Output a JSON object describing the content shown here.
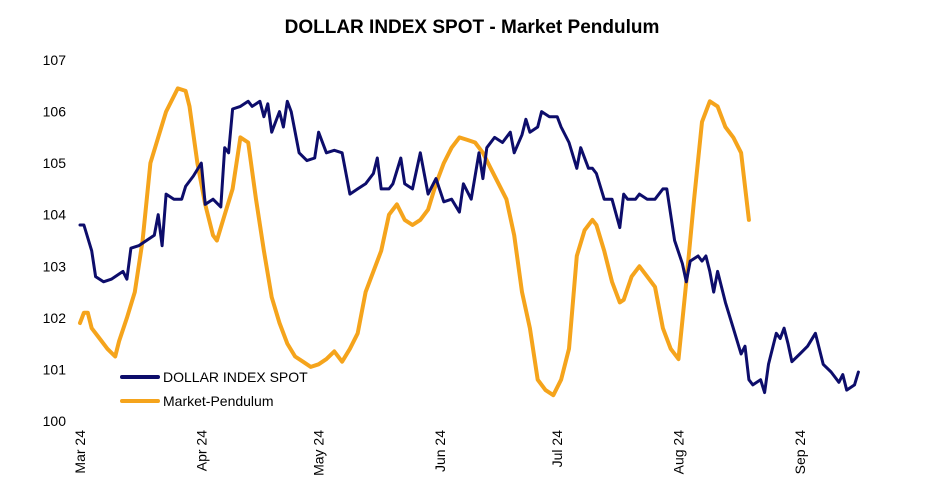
{
  "chart_data": {
    "type": "line",
    "title": "DOLLAR INDEX SPOT - Market Pendulum",
    "xlabel": "",
    "ylabel": "",
    "ylim": [
      100,
      107
    ],
    "y_ticks": [
      100,
      101,
      102,
      103,
      104,
      105,
      106,
      107
    ],
    "x_ticks": [
      "Mar 24",
      "Apr 24",
      "May 24",
      "Jun 24",
      "Jul 24",
      "Aug 24",
      "Sep 24"
    ],
    "x_tick_dates": [
      "2024-03-01",
      "2024-04-01",
      "2024-05-01",
      "2024-06-01",
      "2024-07-01",
      "2024-08-01",
      "2024-09-01"
    ],
    "xlim": [
      "2024-03-01",
      "2024-09-21"
    ],
    "grid": false,
    "legend": "bottom-left",
    "series": [
      {
        "name": "DOLLAR INDEX SPOT",
        "color": "#0d0d6b",
        "points": [
          [
            "2024-03-01",
            103.8
          ],
          [
            "2024-03-02",
            103.8
          ],
          [
            "2024-03-04",
            103.3
          ],
          [
            "2024-03-05",
            102.8
          ],
          [
            "2024-03-07",
            102.7
          ],
          [
            "2024-03-09",
            102.75
          ],
          [
            "2024-03-10",
            102.8
          ],
          [
            "2024-03-12",
            102.9
          ],
          [
            "2024-03-13",
            102.75
          ],
          [
            "2024-03-14",
            103.35
          ],
          [
            "2024-03-16",
            103.4
          ],
          [
            "2024-03-18",
            103.5
          ],
          [
            "2024-03-20",
            103.6
          ],
          [
            "2024-03-21",
            104.0
          ],
          [
            "2024-03-22",
            103.4
          ],
          [
            "2024-03-23",
            104.4
          ],
          [
            "2024-03-25",
            104.3
          ],
          [
            "2024-03-27",
            104.3
          ],
          [
            "2024-03-28",
            104.55
          ],
          [
            "2024-03-30",
            104.75
          ],
          [
            "2024-04-01",
            105.0
          ],
          [
            "2024-04-02",
            104.2
          ],
          [
            "2024-04-04",
            104.3
          ],
          [
            "2024-04-06",
            104.15
          ],
          [
            "2024-04-07",
            105.3
          ],
          [
            "2024-04-08",
            105.2
          ],
          [
            "2024-04-09",
            106.05
          ],
          [
            "2024-04-11",
            106.1
          ],
          [
            "2024-04-13",
            106.2
          ],
          [
            "2024-04-14",
            106.1
          ],
          [
            "2024-04-16",
            106.2
          ],
          [
            "2024-04-17",
            105.9
          ],
          [
            "2024-04-18",
            106.15
          ],
          [
            "2024-04-19",
            105.6
          ],
          [
            "2024-04-20",
            105.8
          ],
          [
            "2024-04-21",
            106.0
          ],
          [
            "2024-04-22",
            105.7
          ],
          [
            "2024-04-23",
            106.2
          ],
          [
            "2024-04-24",
            106.0
          ],
          [
            "2024-04-26",
            105.2
          ],
          [
            "2024-04-28",
            105.05
          ],
          [
            "2024-04-30",
            105.1
          ],
          [
            "2024-05-01",
            105.6
          ],
          [
            "2024-05-03",
            105.2
          ],
          [
            "2024-05-05",
            105.25
          ],
          [
            "2024-05-07",
            105.2
          ],
          [
            "2024-05-09",
            104.4
          ],
          [
            "2024-05-11",
            104.5
          ],
          [
            "2024-05-13",
            104.6
          ],
          [
            "2024-05-15",
            104.8
          ],
          [
            "2024-05-16",
            105.1
          ],
          [
            "2024-05-17",
            104.5
          ],
          [
            "2024-05-19",
            104.5
          ],
          [
            "2024-05-20",
            104.6
          ],
          [
            "2024-05-22",
            105.1
          ],
          [
            "2024-05-23",
            104.6
          ],
          [
            "2024-05-25",
            104.5
          ],
          [
            "2024-05-27",
            105.2
          ],
          [
            "2024-05-29",
            104.4
          ],
          [
            "2024-05-31",
            104.7
          ],
          [
            "2024-06-02",
            104.25
          ],
          [
            "2024-06-04",
            104.3
          ],
          [
            "2024-06-06",
            104.05
          ],
          [
            "2024-06-07",
            104.6
          ],
          [
            "2024-06-09",
            104.3
          ],
          [
            "2024-06-11",
            105.2
          ],
          [
            "2024-06-12",
            104.7
          ],
          [
            "2024-06-13",
            105.3
          ],
          [
            "2024-06-15",
            105.5
          ],
          [
            "2024-06-17",
            105.4
          ],
          [
            "2024-06-19",
            105.6
          ],
          [
            "2024-06-20",
            105.2
          ],
          [
            "2024-06-22",
            105.55
          ],
          [
            "2024-06-23",
            105.85
          ],
          [
            "2024-06-24",
            105.6
          ],
          [
            "2024-06-26",
            105.7
          ],
          [
            "2024-06-27",
            106.0
          ],
          [
            "2024-06-29",
            105.9
          ],
          [
            "2024-07-01",
            105.9
          ],
          [
            "2024-07-02",
            105.7
          ],
          [
            "2024-07-04",
            105.4
          ],
          [
            "2024-07-06",
            104.9
          ],
          [
            "2024-07-07",
            105.3
          ],
          [
            "2024-07-09",
            104.9
          ],
          [
            "2024-07-10",
            104.9
          ],
          [
            "2024-07-11",
            104.8
          ],
          [
            "2024-07-13",
            104.3
          ],
          [
            "2024-07-15",
            104.3
          ],
          [
            "2024-07-17",
            103.75
          ],
          [
            "2024-07-18",
            104.4
          ],
          [
            "2024-07-19",
            104.3
          ],
          [
            "2024-07-21",
            104.3
          ],
          [
            "2024-07-22",
            104.4
          ],
          [
            "2024-07-24",
            104.3
          ],
          [
            "2024-07-26",
            104.3
          ],
          [
            "2024-07-28",
            104.5
          ],
          [
            "2024-07-29",
            104.5
          ],
          [
            "2024-07-30",
            104.0
          ],
          [
            "2024-07-31",
            103.5
          ],
          [
            "2024-08-02",
            103.05
          ],
          [
            "2024-08-03",
            102.7
          ],
          [
            "2024-08-04",
            103.1
          ],
          [
            "2024-08-06",
            103.2
          ],
          [
            "2024-08-07",
            103.1
          ],
          [
            "2024-08-08",
            103.2
          ],
          [
            "2024-08-09",
            102.9
          ],
          [
            "2024-08-10",
            102.5
          ],
          [
            "2024-08-11",
            102.9
          ],
          [
            "2024-08-13",
            102.3
          ],
          [
            "2024-08-15",
            101.8
          ],
          [
            "2024-08-17",
            101.3
          ],
          [
            "2024-08-18",
            101.45
          ],
          [
            "2024-08-19",
            100.8
          ],
          [
            "2024-08-20",
            100.7
          ],
          [
            "2024-08-22",
            100.8
          ],
          [
            "2024-08-23",
            100.55
          ],
          [
            "2024-08-24",
            101.1
          ],
          [
            "2024-08-26",
            101.7
          ],
          [
            "2024-08-27",
            101.6
          ],
          [
            "2024-08-28",
            101.8
          ],
          [
            "2024-08-29",
            101.5
          ],
          [
            "2024-08-30",
            101.15
          ],
          [
            "2024-09-01",
            101.3
          ],
          [
            "2024-09-03",
            101.45
          ],
          [
            "2024-09-05",
            101.7
          ],
          [
            "2024-09-07",
            101.1
          ],
          [
            "2024-09-09",
            100.95
          ],
          [
            "2024-09-11",
            100.75
          ],
          [
            "2024-09-12",
            100.9
          ],
          [
            "2024-09-13",
            100.6
          ],
          [
            "2024-09-15",
            100.7
          ],
          [
            "2024-09-16",
            100.95
          ]
        ]
      },
      {
        "name": "Market-Pendulum",
        "color": "#f5a41c",
        "points": [
          [
            "2024-03-01",
            101.9
          ],
          [
            "2024-03-02",
            102.1
          ],
          [
            "2024-03-03",
            102.1
          ],
          [
            "2024-03-04",
            101.8
          ],
          [
            "2024-03-06",
            101.6
          ],
          [
            "2024-03-08",
            101.4
          ],
          [
            "2024-03-10",
            101.25
          ],
          [
            "2024-03-11",
            101.55
          ],
          [
            "2024-03-13",
            102.0
          ],
          [
            "2024-03-15",
            102.5
          ],
          [
            "2024-03-17",
            103.5
          ],
          [
            "2024-03-19",
            105.0
          ],
          [
            "2024-03-21",
            105.5
          ],
          [
            "2024-03-23",
            106.0
          ],
          [
            "2024-03-26",
            106.45
          ],
          [
            "2024-03-28",
            106.4
          ],
          [
            "2024-03-29",
            106.1
          ],
          [
            "2024-03-31",
            105.0
          ],
          [
            "2024-04-02",
            104.2
          ],
          [
            "2024-04-04",
            103.6
          ],
          [
            "2024-04-05",
            103.5
          ],
          [
            "2024-04-07",
            104.0
          ],
          [
            "2024-04-09",
            104.5
          ],
          [
            "2024-04-11",
            105.5
          ],
          [
            "2024-04-13",
            105.4
          ],
          [
            "2024-04-15",
            104.3
          ],
          [
            "2024-04-17",
            103.3
          ],
          [
            "2024-04-19",
            102.4
          ],
          [
            "2024-04-21",
            101.9
          ],
          [
            "2024-04-23",
            101.5
          ],
          [
            "2024-04-25",
            101.25
          ],
          [
            "2024-04-27",
            101.15
          ],
          [
            "2024-04-29",
            101.05
          ],
          [
            "2024-05-01",
            101.1
          ],
          [
            "2024-05-03",
            101.2
          ],
          [
            "2024-05-05",
            101.35
          ],
          [
            "2024-05-07",
            101.15
          ],
          [
            "2024-05-09",
            101.4
          ],
          [
            "2024-05-11",
            101.7
          ],
          [
            "2024-05-13",
            102.5
          ],
          [
            "2024-05-15",
            102.9
          ],
          [
            "2024-05-17",
            103.3
          ],
          [
            "2024-05-19",
            104.0
          ],
          [
            "2024-05-21",
            104.2
          ],
          [
            "2024-05-23",
            103.9
          ],
          [
            "2024-05-25",
            103.8
          ],
          [
            "2024-05-27",
            103.9
          ],
          [
            "2024-05-29",
            104.1
          ],
          [
            "2024-05-31",
            104.6
          ],
          [
            "2024-06-02",
            105.0
          ],
          [
            "2024-06-04",
            105.3
          ],
          [
            "2024-06-06",
            105.5
          ],
          [
            "2024-06-08",
            105.45
          ],
          [
            "2024-06-10",
            105.4
          ],
          [
            "2024-06-12",
            105.2
          ],
          [
            "2024-06-14",
            104.9
          ],
          [
            "2024-06-16",
            104.6
          ],
          [
            "2024-06-18",
            104.3
          ],
          [
            "2024-06-20",
            103.6
          ],
          [
            "2024-06-22",
            102.5
          ],
          [
            "2024-06-24",
            101.8
          ],
          [
            "2024-06-26",
            100.8
          ],
          [
            "2024-06-28",
            100.6
          ],
          [
            "2024-06-30",
            100.5
          ],
          [
            "2024-07-02",
            100.8
          ],
          [
            "2024-07-04",
            101.4
          ],
          [
            "2024-07-06",
            103.2
          ],
          [
            "2024-07-08",
            103.7
          ],
          [
            "2024-07-10",
            103.9
          ],
          [
            "2024-07-11",
            103.8
          ],
          [
            "2024-07-13",
            103.3
          ],
          [
            "2024-07-15",
            102.7
          ],
          [
            "2024-07-17",
            102.3
          ],
          [
            "2024-07-18",
            102.35
          ],
          [
            "2024-07-20",
            102.8
          ],
          [
            "2024-07-22",
            103.0
          ],
          [
            "2024-07-24",
            102.8
          ],
          [
            "2024-07-26",
            102.6
          ],
          [
            "2024-07-28",
            101.8
          ],
          [
            "2024-07-30",
            101.4
          ],
          [
            "2024-08-01",
            101.2
          ],
          [
            "2024-08-03",
            102.7
          ],
          [
            "2024-08-05",
            104.3
          ],
          [
            "2024-08-07",
            105.8
          ],
          [
            "2024-08-09",
            106.2
          ],
          [
            "2024-08-11",
            106.1
          ],
          [
            "2024-08-13",
            105.7
          ],
          [
            "2024-08-15",
            105.5
          ],
          [
            "2024-08-17",
            105.2
          ],
          [
            "2024-08-19",
            103.9
          ]
        ]
      }
    ]
  }
}
